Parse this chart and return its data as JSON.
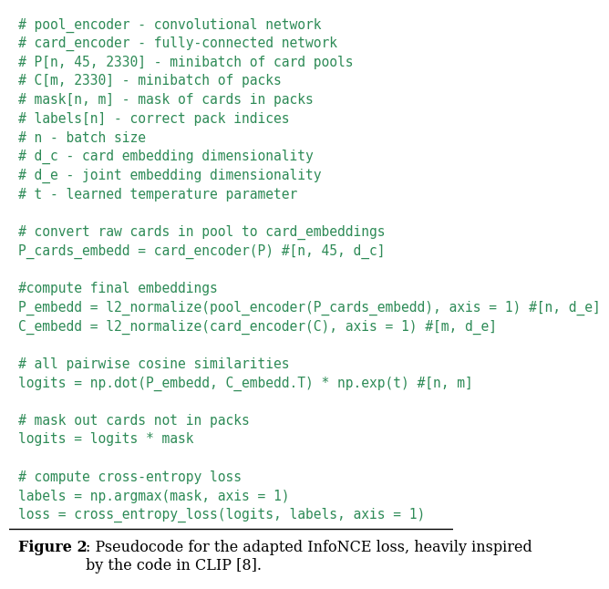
{
  "bg_color": "#ffffff",
  "code_color": "#2e8b57",
  "text_color": "#000000",
  "fig_width": 6.4,
  "fig_height": 6.29,
  "font_size": 10.5,
  "caption_font_size": 11.5,
  "code_lines": [
    "# pool_encoder - convolutional network",
    "# card_encoder - fully-connected network",
    "# P[n, 45, 2330] - minibatch of card pools",
    "# C[m, 2330] - minibatch of packs",
    "# mask[n, m] - mask of cards in packs",
    "# labels[n] - correct pack indices",
    "# n - batch size",
    "# d_c - card embedding dimensionality",
    "# d_e - joint embedding dimensionality",
    "# t - learned temperature parameter",
    "",
    "# convert raw cards in pool to card_embeddings",
    "P_cards_embedd = card_encoder(P) #[n, 45, d_c]",
    "",
    "#compute final embeddings",
    "P_embedd = l2_normalize(pool_encoder(P_cards_embedd), axis = 1) #[n, d_e]",
    "C_embedd = l2_normalize(card_encoder(C), axis = 1) #[m, d_e]",
    "",
    "# all pairwise cosine similarities",
    "logits = np.dot(P_embedd, C_embedd.T) * np.exp(t) #[n, m]",
    "",
    "# mask out cards not in packs",
    "logits = logits * mask",
    "",
    "# compute cross-entropy loss",
    "labels = np.argmax(mask, axis = 1)",
    "loss = cross_entropy_loss(logits, labels, axis = 1)"
  ],
  "caption_bold": "Figure 2",
  "caption_normal": ": Pseudocode for the adapted InfoNCE loss, heavily inspired\nby the code in CLIP [8]."
}
